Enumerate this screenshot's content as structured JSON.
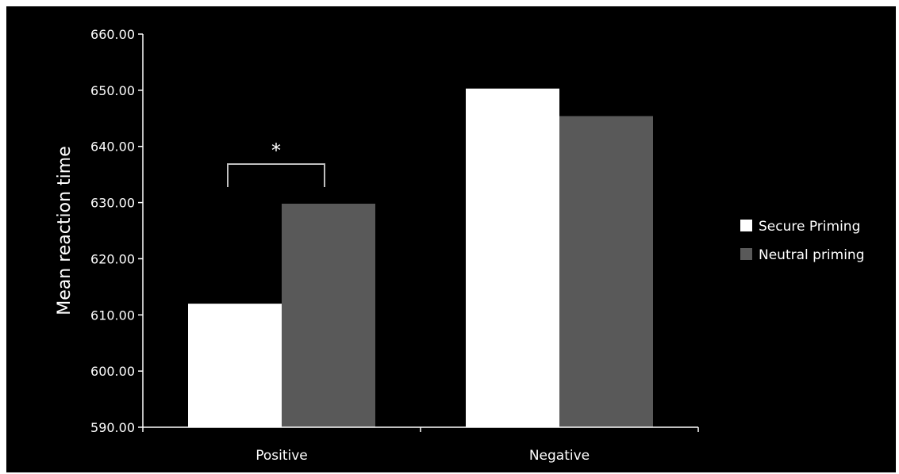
{
  "chart_data": {
    "type": "bar",
    "categories": [
      "Positive",
      "Negative"
    ],
    "series": [
      {
        "name": "Secure Priming",
        "values": [
          612.0,
          650.3
        ],
        "color": "#ffffff"
      },
      {
        "name": "Neutral priming",
        "values": [
          629.8,
          645.4
        ],
        "color": "#595959"
      }
    ],
    "title": "",
    "xlabel": "",
    "ylabel": "Mean reaction time",
    "ylim": [
      590,
      660
    ],
    "yticks": [
      "590.00",
      "600.00",
      "610.00",
      "620.00",
      "630.00",
      "640.00",
      "650.00",
      "660.00"
    ],
    "grid": false,
    "legend_position": "right",
    "annotations": [
      {
        "text": "*",
        "category": "Positive",
        "between_series": [
          0,
          1
        ]
      }
    ],
    "background": "#000000",
    "axis_color": "#ffffff"
  }
}
